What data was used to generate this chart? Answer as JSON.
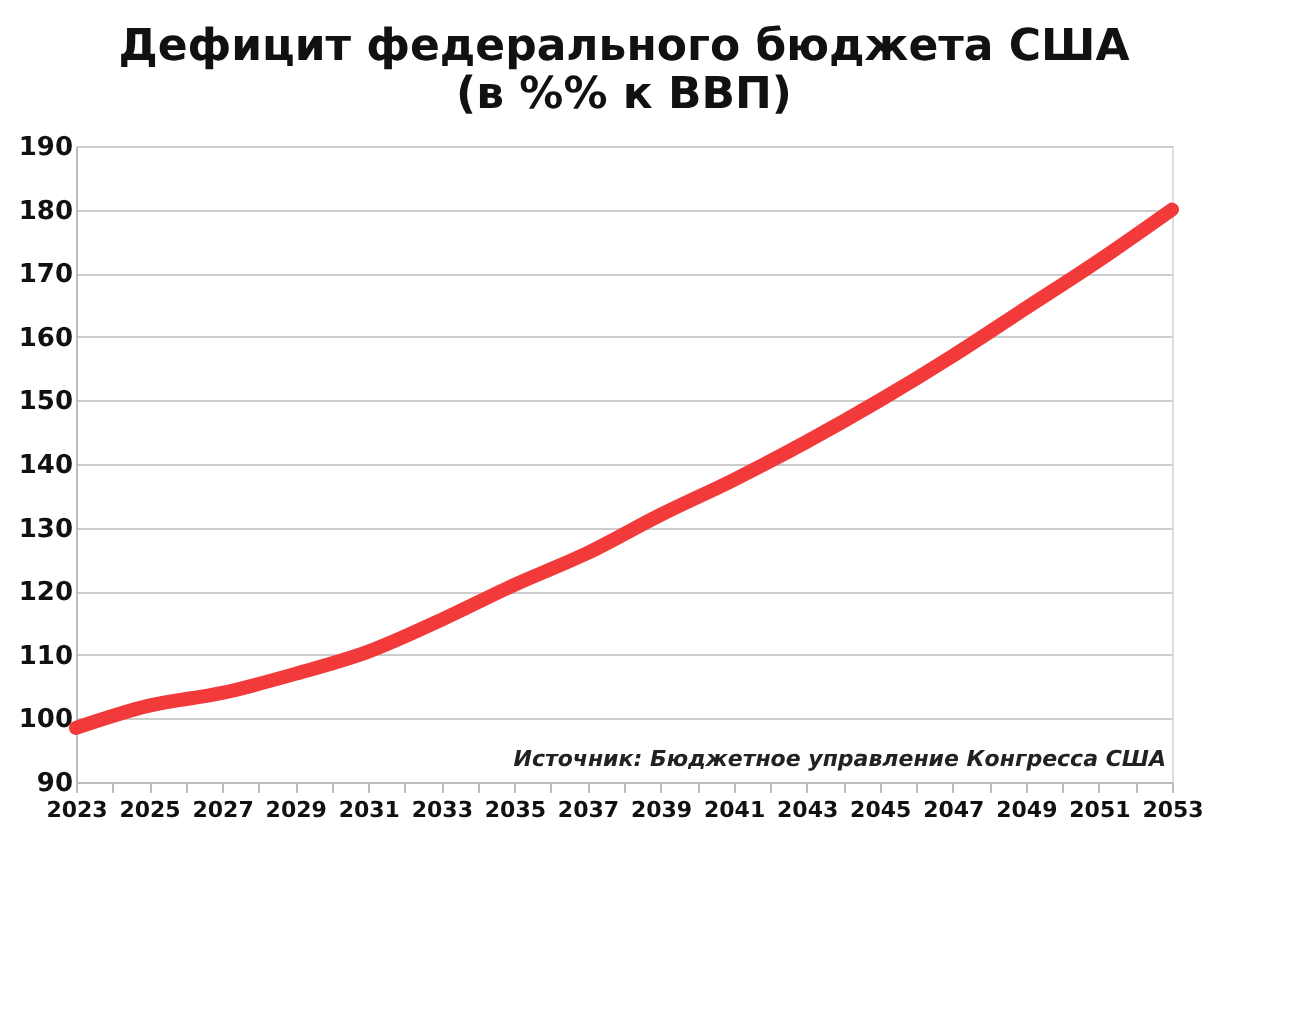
{
  "chart_data": {
    "type": "line",
    "title": [
      "Дефицит федерального бюджета США",
      "(в %% к ВВП)"
    ],
    "x": [
      2023,
      2025,
      2027,
      2029,
      2031,
      2033,
      2035,
      2037,
      2039,
      2041,
      2043,
      2045,
      2047,
      2049,
      2051,
      2053
    ],
    "series": [
      {
        "color": "#f23a3a",
        "values": [
          98.5,
          102,
          104,
          107,
          110.5,
          115.5,
          121,
          126,
          132,
          137.5,
          143.5,
          150,
          157,
          164.5,
          172,
          180
        ]
      }
    ],
    "xlim": [
      2023,
      2053
    ],
    "xticks": [
      2023,
      {
        "value": 2024,
        "label": null
      },
      2025,
      {
        "value": 2026,
        "label": null
      },
      2027,
      {
        "value": 2028,
        "label": null
      },
      2029,
      {
        "value": 2030,
        "label": null
      },
      2031,
      {
        "value": 2032,
        "label": null
      },
      2033,
      {
        "value": 2034,
        "label": null
      },
      2035,
      {
        "value": 2036,
        "label": null
      },
      2037,
      {
        "value": 2038,
        "label": null
      },
      2039,
      {
        "value": 2040,
        "label": null
      },
      2041,
      {
        "value": 2042,
        "label": null
      },
      2043,
      {
        "value": 2044,
        "label": null
      },
      2045,
      {
        "value": 2046,
        "label": null
      },
      2047,
      {
        "value": 2048,
        "label": null
      },
      2049,
      {
        "value": 2050,
        "label": null
      },
      2051,
      {
        "value": 2052,
        "label": null
      },
      2053
    ],
    "ylim": [
      90,
      190
    ],
    "yticks": [
      90,
      100,
      110,
      120,
      130,
      140,
      150,
      160,
      170,
      180,
      190
    ],
    "grid": "y",
    "line_style": "solid",
    "annotations": [
      "Источник: Бюджетное управление Конгресса США"
    ]
  }
}
